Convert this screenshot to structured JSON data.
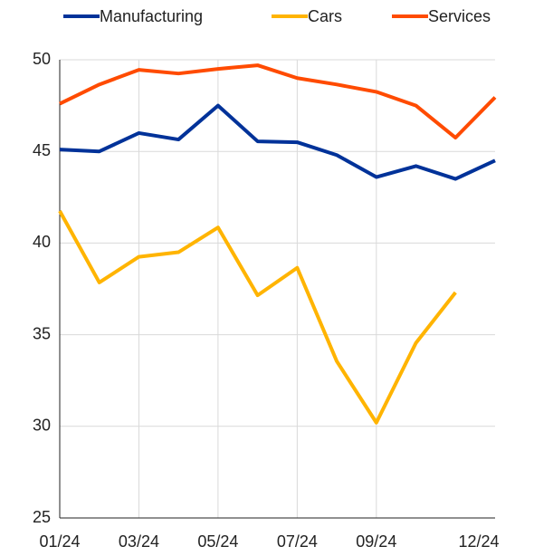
{
  "chart_data": {
    "type": "line",
    "categories": [
      "01/24",
      null,
      "03/24",
      null,
      "05/24",
      null,
      "07/24",
      null,
      "09/24",
      null,
      null,
      "12/24"
    ],
    "series": [
      {
        "name": "Manufacturing",
        "color": "#003299",
        "values": [
          45.1,
          45.0,
          46.0,
          45.65,
          47.5,
          45.55,
          45.5,
          44.8,
          43.6,
          44.2,
          43.5,
          44.5
        ]
      },
      {
        "name": "Cars",
        "color": "#ffb400",
        "values": [
          41.75,
          37.85,
          39.25,
          39.5,
          40.85,
          37.15,
          38.65,
          33.55,
          30.2,
          34.55,
          37.3,
          null
        ]
      },
      {
        "name": "Services",
        "color": "#ff4b00",
        "values": [
          47.6,
          48.65,
          49.45,
          49.25,
          49.5,
          49.7,
          49.0,
          48.65,
          48.25,
          47.5,
          45.75,
          47.95
        ]
      }
    ],
    "ylim": [
      25,
      50
    ],
    "yticks": [
      25,
      30,
      35,
      40,
      45,
      50
    ],
    "grid": true,
    "legend": "top"
  }
}
